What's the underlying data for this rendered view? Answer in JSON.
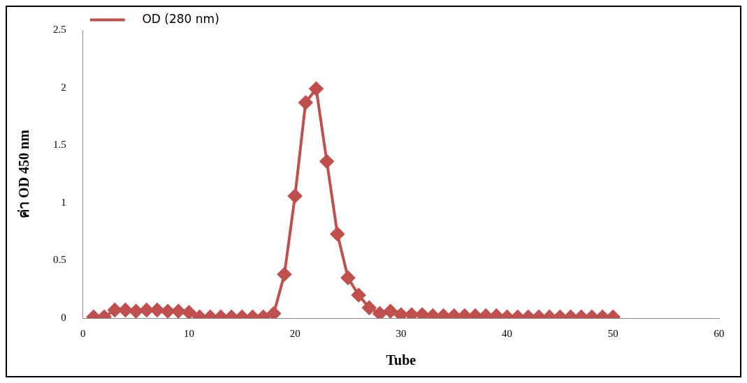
{
  "chart_data": {
    "type": "line",
    "xlabel": "Tube",
    "ylabel": "ค่า OD 450 nm",
    "x": [
      1,
      2,
      3,
      4,
      5,
      6,
      7,
      8,
      9,
      10,
      11,
      12,
      13,
      14,
      15,
      16,
      17,
      18,
      19,
      20,
      21,
      22,
      23,
      24,
      25,
      26,
      27,
      28,
      29,
      30,
      31,
      32,
      33,
      34,
      35,
      36,
      37,
      38,
      39,
      40,
      41,
      42,
      43,
      44,
      45,
      46,
      47,
      48,
      49,
      50
    ],
    "series": [
      {
        "name": "OD (280 nm)",
        "color": "#c0504d",
        "values": [
          0.01,
          0.01,
          0.07,
          0.07,
          0.06,
          0.07,
          0.07,
          0.06,
          0.06,
          0.05,
          0.01,
          0.01,
          0.01,
          0.01,
          0.01,
          0.01,
          0.01,
          0.04,
          0.38,
          1.06,
          1.87,
          1.99,
          1.36,
          0.73,
          0.35,
          0.2,
          0.09,
          0.04,
          0.06,
          0.03,
          0.03,
          0.03,
          0.02,
          0.02,
          0.02,
          0.02,
          0.02,
          0.02,
          0.02,
          0.01,
          0.01,
          0.01,
          0.01,
          0.01,
          0.01,
          0.01,
          0.01,
          0.01,
          0.01,
          0.01
        ]
      }
    ],
    "xlim": [
      0,
      60
    ],
    "xticks": [
      0,
      10,
      20,
      30,
      40,
      50,
      60
    ],
    "ylim": [
      0,
      2.5
    ],
    "yticks": [
      0,
      0.5,
      1,
      1.5,
      2,
      2.5
    ],
    "grid": false,
    "legend": "top left",
    "marker": "diamond",
    "line_style": "solid"
  }
}
